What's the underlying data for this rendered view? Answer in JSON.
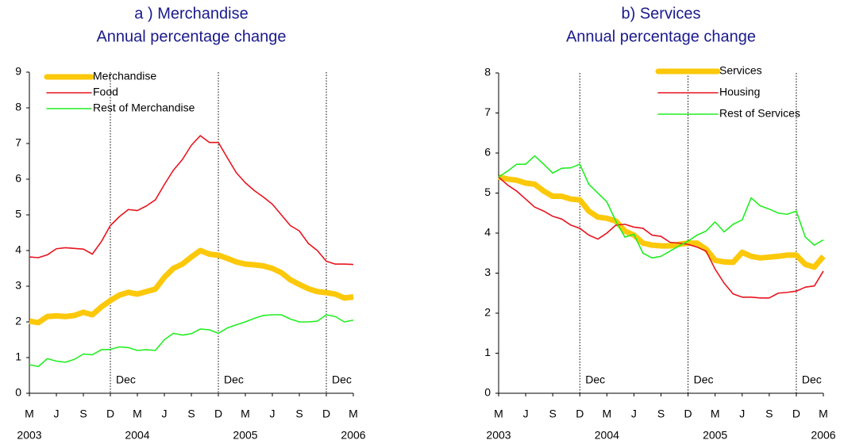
{
  "chart_data": [
    {
      "type": "line",
      "title": "a ) Merchandise",
      "subtitle": "Annual percentage change",
      "categories": [
        "M",
        null,
        null,
        "J",
        null,
        null,
        "S",
        null,
        null,
        "D",
        null,
        null,
        "M",
        null,
        null,
        "J",
        null,
        null,
        "S",
        null,
        null,
        "D",
        null,
        null,
        "M",
        null,
        null,
        "J",
        null,
        null,
        "S",
        null,
        null,
        "D",
        null,
        null,
        "M"
      ],
      "years": [
        "2003",
        null,
        null,
        null,
        null,
        null,
        null,
        null,
        null,
        null,
        null,
        null,
        "2004",
        null,
        null,
        null,
        null,
        null,
        null,
        null,
        null,
        null,
        null,
        null,
        "2005",
        null,
        null,
        null,
        null,
        null,
        null,
        null,
        null,
        null,
        null,
        null,
        "2006"
      ],
      "annotations": [
        {
          "category_index": 9,
          "text": "Dec"
        },
        {
          "category_index": 21,
          "text": "Dec"
        },
        {
          "category_index": 33,
          "text": "Dec"
        }
      ],
      "ylim": [
        0,
        9
      ],
      "yticks": [
        0,
        1,
        2,
        3,
        4,
        5,
        6,
        7,
        8,
        9
      ],
      "legend": "upper left",
      "series": [
        {
          "name": "Merchandise",
          "color": "#fcc80a",
          "width": 7,
          "values": [
            2.02,
            1.98,
            2.15,
            2.17,
            2.15,
            2.18,
            2.27,
            2.2,
            2.42,
            2.6,
            2.75,
            2.83,
            2.78,
            2.85,
            2.92,
            3.25,
            3.5,
            3.62,
            3.82,
            4.0,
            3.9,
            3.87,
            3.78,
            3.68,
            3.62,
            3.6,
            3.57,
            3.5,
            3.38,
            3.18,
            3.05,
            2.93,
            2.85,
            2.82,
            2.78,
            2.67,
            2.7
          ]
        },
        {
          "name": "Food",
          "color": "#e8141e",
          "width": 1.6,
          "values": [
            3.82,
            3.8,
            3.88,
            4.05,
            4.08,
            4.06,
            4.04,
            3.9,
            4.25,
            4.7,
            4.95,
            5.15,
            5.12,
            5.25,
            5.42,
            5.85,
            6.25,
            6.55,
            6.95,
            7.22,
            7.03,
            7.03,
            6.6,
            6.18,
            5.9,
            5.68,
            5.5,
            5.3,
            5.0,
            4.7,
            4.55,
            4.2,
            4.0,
            3.7,
            3.62,
            3.62,
            3.61
          ]
        },
        {
          "name": "Rest of Merchandise",
          "color": "#22ee22",
          "width": 1.6,
          "values": [
            0.8,
            0.75,
            0.97,
            0.9,
            0.87,
            0.95,
            1.1,
            1.08,
            1.22,
            1.23,
            1.3,
            1.28,
            1.2,
            1.22,
            1.2,
            1.5,
            1.68,
            1.63,
            1.67,
            1.8,
            1.78,
            1.68,
            1.83,
            1.92,
            2.0,
            2.1,
            2.18,
            2.2,
            2.2,
            2.08,
            2.0,
            2.0,
            2.02,
            2.2,
            2.15,
            2.0,
            2.05
          ]
        }
      ]
    },
    {
      "type": "line",
      "title": "b) Services",
      "subtitle": "Annual percentage change",
      "categories": [
        "M",
        null,
        null,
        "J",
        null,
        null,
        "S",
        null,
        null,
        "D",
        null,
        null,
        "M",
        null,
        null,
        "J",
        null,
        null,
        "S",
        null,
        null,
        "D",
        null,
        null,
        "M",
        null,
        null,
        "J",
        null,
        null,
        "S",
        null,
        null,
        "D",
        null,
        null,
        "M"
      ],
      "years": [
        "2003",
        null,
        null,
        null,
        null,
        null,
        null,
        null,
        null,
        null,
        null,
        null,
        "2004",
        null,
        null,
        null,
        null,
        null,
        null,
        null,
        null,
        null,
        null,
        null,
        "2005",
        null,
        null,
        null,
        null,
        null,
        null,
        null,
        null,
        null,
        null,
        null,
        "2006"
      ],
      "annotations": [
        {
          "category_index": 9,
          "text": "Dec"
        },
        {
          "category_index": 21,
          "text": "Dec"
        },
        {
          "category_index": 33,
          "text": "Dec"
        }
      ],
      "ylim": [
        0,
        8
      ],
      "yticks": [
        0,
        1,
        2,
        3,
        4,
        5,
        6,
        7,
        8
      ],
      "legend": "upper right",
      "series": [
        {
          "name": "Services",
          "color": "#fcc80a",
          "width": 7,
          "values": [
            5.4,
            5.35,
            5.32,
            5.25,
            5.22,
            5.05,
            4.92,
            4.92,
            4.85,
            4.83,
            4.55,
            4.4,
            4.37,
            4.3,
            4.05,
            3.95,
            3.75,
            3.7,
            3.68,
            3.68,
            3.72,
            3.75,
            3.75,
            3.6,
            3.32,
            3.28,
            3.27,
            3.52,
            3.42,
            3.38,
            3.4,
            3.42,
            3.45,
            3.45,
            3.22,
            3.15,
            3.42
          ]
        },
        {
          "name": "Housing",
          "color": "#e8141e",
          "width": 1.6,
          "values": [
            5.4,
            5.2,
            5.05,
            4.85,
            4.65,
            4.55,
            4.42,
            4.35,
            4.2,
            4.12,
            3.95,
            3.85,
            4.0,
            4.2,
            4.22,
            4.15,
            4.12,
            3.95,
            3.92,
            3.77,
            3.75,
            3.72,
            3.65,
            3.55,
            3.1,
            2.75,
            2.48,
            2.4,
            2.4,
            2.38,
            2.38,
            2.5,
            2.52,
            2.55,
            2.65,
            2.68,
            3.05
          ]
        },
        {
          "name": "Rest of Services",
          "color": "#22ee22",
          "width": 1.6,
          "values": [
            5.4,
            5.55,
            5.72,
            5.72,
            5.93,
            5.72,
            5.5,
            5.62,
            5.63,
            5.72,
            5.22,
            5.0,
            4.78,
            4.3,
            3.9,
            3.97,
            3.5,
            3.38,
            3.42,
            3.55,
            3.68,
            3.8,
            3.95,
            4.05,
            4.28,
            4.03,
            4.22,
            4.33,
            4.88,
            4.68,
            4.6,
            4.5,
            4.47,
            4.55,
            3.9,
            3.7,
            3.83
          ]
        }
      ]
    }
  ]
}
